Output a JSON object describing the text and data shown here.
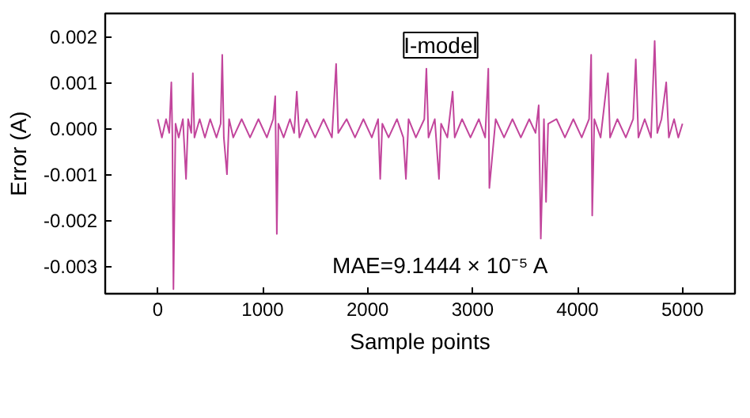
{
  "chart_data": {
    "type": "line",
    "xlabel": "Sample points",
    "ylabel": "Error (A)",
    "annotations": [
      "I-model",
      "MAE=9.1444 × 10⁻⁵ A"
    ],
    "series": [
      {
        "color": "#c2459c",
        "x": [
          0,
          40,
          80,
          110,
          130,
          140,
          150,
          170,
          200,
          240,
          270,
          290,
          320,
          335,
          350,
          400,
          450,
          500,
          560,
          600,
          615,
          630,
          660,
          680,
          720,
          800,
          880,
          960,
          1040,
          1100,
          1120,
          1135,
          1150,
          1200,
          1260,
          1300,
          1325,
          1350,
          1420,
          1500,
          1580,
          1660,
          1700,
          1720,
          1800,
          1880,
          1960,
          2040,
          2100,
          2120,
          2140,
          2200,
          2280,
          2340,
          2365,
          2390,
          2460,
          2540,
          2560,
          2580,
          2640,
          2680,
          2700,
          2760,
          2810,
          2830,
          2900,
          2980,
          3060,
          3120,
          3150,
          3160,
          3220,
          3300,
          3380,
          3460,
          3540,
          3600,
          3630,
          3650,
          3680,
          3700,
          3720,
          3800,
          3880,
          3960,
          4040,
          4110,
          4130,
          4140,
          4160,
          4220,
          4290,
          4310,
          4380,
          4460,
          4530,
          4555,
          4580,
          4640,
          4700,
          4735,
          4760,
          4800,
          4845,
          4870,
          4920,
          4960,
          5000
        ],
        "values": [
          0.0002,
          -0.0002,
          0.0002,
          -0.0001,
          0.001,
          -0.0002,
          -0.0035,
          0.0001,
          -0.0002,
          0.0002,
          -0.0011,
          0.0002,
          -0.0001,
          0.0012,
          -0.0002,
          0.0002,
          -0.0002,
          0.0002,
          -0.0002,
          0.0001,
          0.0016,
          -0.0002,
          -0.001,
          0.0002,
          -0.0002,
          0.0002,
          -0.0002,
          0.0002,
          -0.0002,
          0.0002,
          0.0007,
          -0.0023,
          0.0001,
          -0.0002,
          0.0002,
          -0.0001,
          0.0008,
          -0.0002,
          0.0002,
          -0.0002,
          0.0002,
          -0.0002,
          0.0014,
          -0.0001,
          0.0002,
          -0.0002,
          0.0002,
          -0.0002,
          0.0002,
          -0.0011,
          0.0001,
          -0.0002,
          0.0002,
          -0.0002,
          -0.0011,
          0.0002,
          -0.0002,
          0.0002,
          0.0013,
          -0.0002,
          0.0002,
          -0.0011,
          0.0001,
          -0.0002,
          0.0008,
          -0.0002,
          0.0002,
          -0.0002,
          0.0002,
          -0.0002,
          0.0013,
          -0.0013,
          0.0002,
          -0.0002,
          0.0002,
          -0.0002,
          0.0002,
          -0.0001,
          0.0005,
          -0.0024,
          0.0002,
          -0.0016,
          0.0001,
          0.0002,
          -0.0002,
          0.0002,
          -0.0002,
          0.0002,
          0.0016,
          -0.0019,
          0.0002,
          -0.0002,
          0.0012,
          -0.0002,
          0.0002,
          -0.0002,
          0.0002,
          0.0015,
          -0.0002,
          0.0002,
          -0.0002,
          0.0019,
          -0.0001,
          0.0002,
          0.001,
          -0.0002,
          0.0002,
          -0.0002,
          0.0001
        ]
      }
    ],
    "xlim": [
      -500,
      5500
    ],
    "xticks": [
      0,
      1000,
      2000,
      3000,
      4000,
      5000
    ],
    "ylim": [
      -0.0036,
      0.0025
    ],
    "yticks": [
      {
        "value": 0.002,
        "label": "0.002"
      },
      {
        "value": 0.001,
        "label": "0.001"
      },
      {
        "value": 0,
        "label": "0.000"
      },
      {
        "value": -0.001,
        "label": "-0.001"
      },
      {
        "value": -0.002,
        "label": "-0.002"
      },
      {
        "value": -0.003,
        "label": "-0.003"
      }
    ],
    "grid": false,
    "marker": "none",
    "line_style": "solid"
  }
}
